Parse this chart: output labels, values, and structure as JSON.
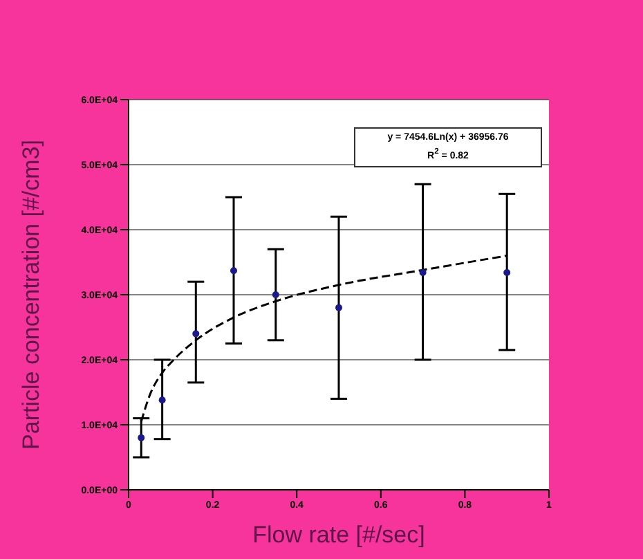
{
  "chart_data": {
    "type": "scatter",
    "xlabel": "Flow rate [#/sec]",
    "ylabel": "Particle concentration [#/cm3]",
    "annotations": [
      "y = 7454.6Ln(x) + 36956.76",
      "R$^{2}$ = 0.82"
    ],
    "series": [
      {
        "color": "#1a1a8c",
        "x": [
          0.03,
          0.08,
          0.16,
          0.25,
          0.35,
          0.5,
          0.7,
          0.9
        ],
        "values": [
          8000,
          13800,
          24000,
          33700,
          30000,
          28000,
          33400,
          33400
        ],
        "errors": [
          [
            5000,
            11000
          ],
          [
            7800,
            20000
          ],
          [
            16500,
            32000
          ],
          [
            22500,
            45000
          ],
          [
            23000,
            37000
          ],
          [
            14000,
            42000
          ],
          [
            20000,
            47000
          ],
          [
            21500,
            45500
          ]
        ]
      },
      {
        "type": "line",
        "color": "#000000",
        "line_style": "dashed",
        "marker": "none",
        "x": [
          0.03,
          0.05,
          0.08,
          0.1,
          0.16,
          0.25,
          0.35,
          0.5,
          0.7,
          0.9
        ],
        "values": [
          10500,
          14500,
          18000,
          19500,
          23000,
          26500,
          29000,
          31500,
          33800,
          36000
        ]
      }
    ],
    "xlim": [
      0,
      1
    ],
    "xticks": [
      0,
      0.2,
      0.4,
      0.6,
      0.8,
      1
    ],
    "ylim": [
      0,
      60000
    ],
    "yticks": [
      {
        "value": 0,
        "label": "0.0E+00"
      },
      {
        "value": 10000,
        "label": "1.0E+04"
      },
      {
        "value": 20000,
        "label": "2.0E+04"
      },
      {
        "value": 30000,
        "label": "3.0E+04"
      },
      {
        "value": 40000,
        "label": "4.0E+04"
      },
      {
        "value": 50000,
        "label": "5.0E+04"
      },
      {
        "value": 60000,
        "label": "6.0E+04"
      }
    ],
    "grid": "y",
    "legend": false,
    "marker": "circle"
  }
}
